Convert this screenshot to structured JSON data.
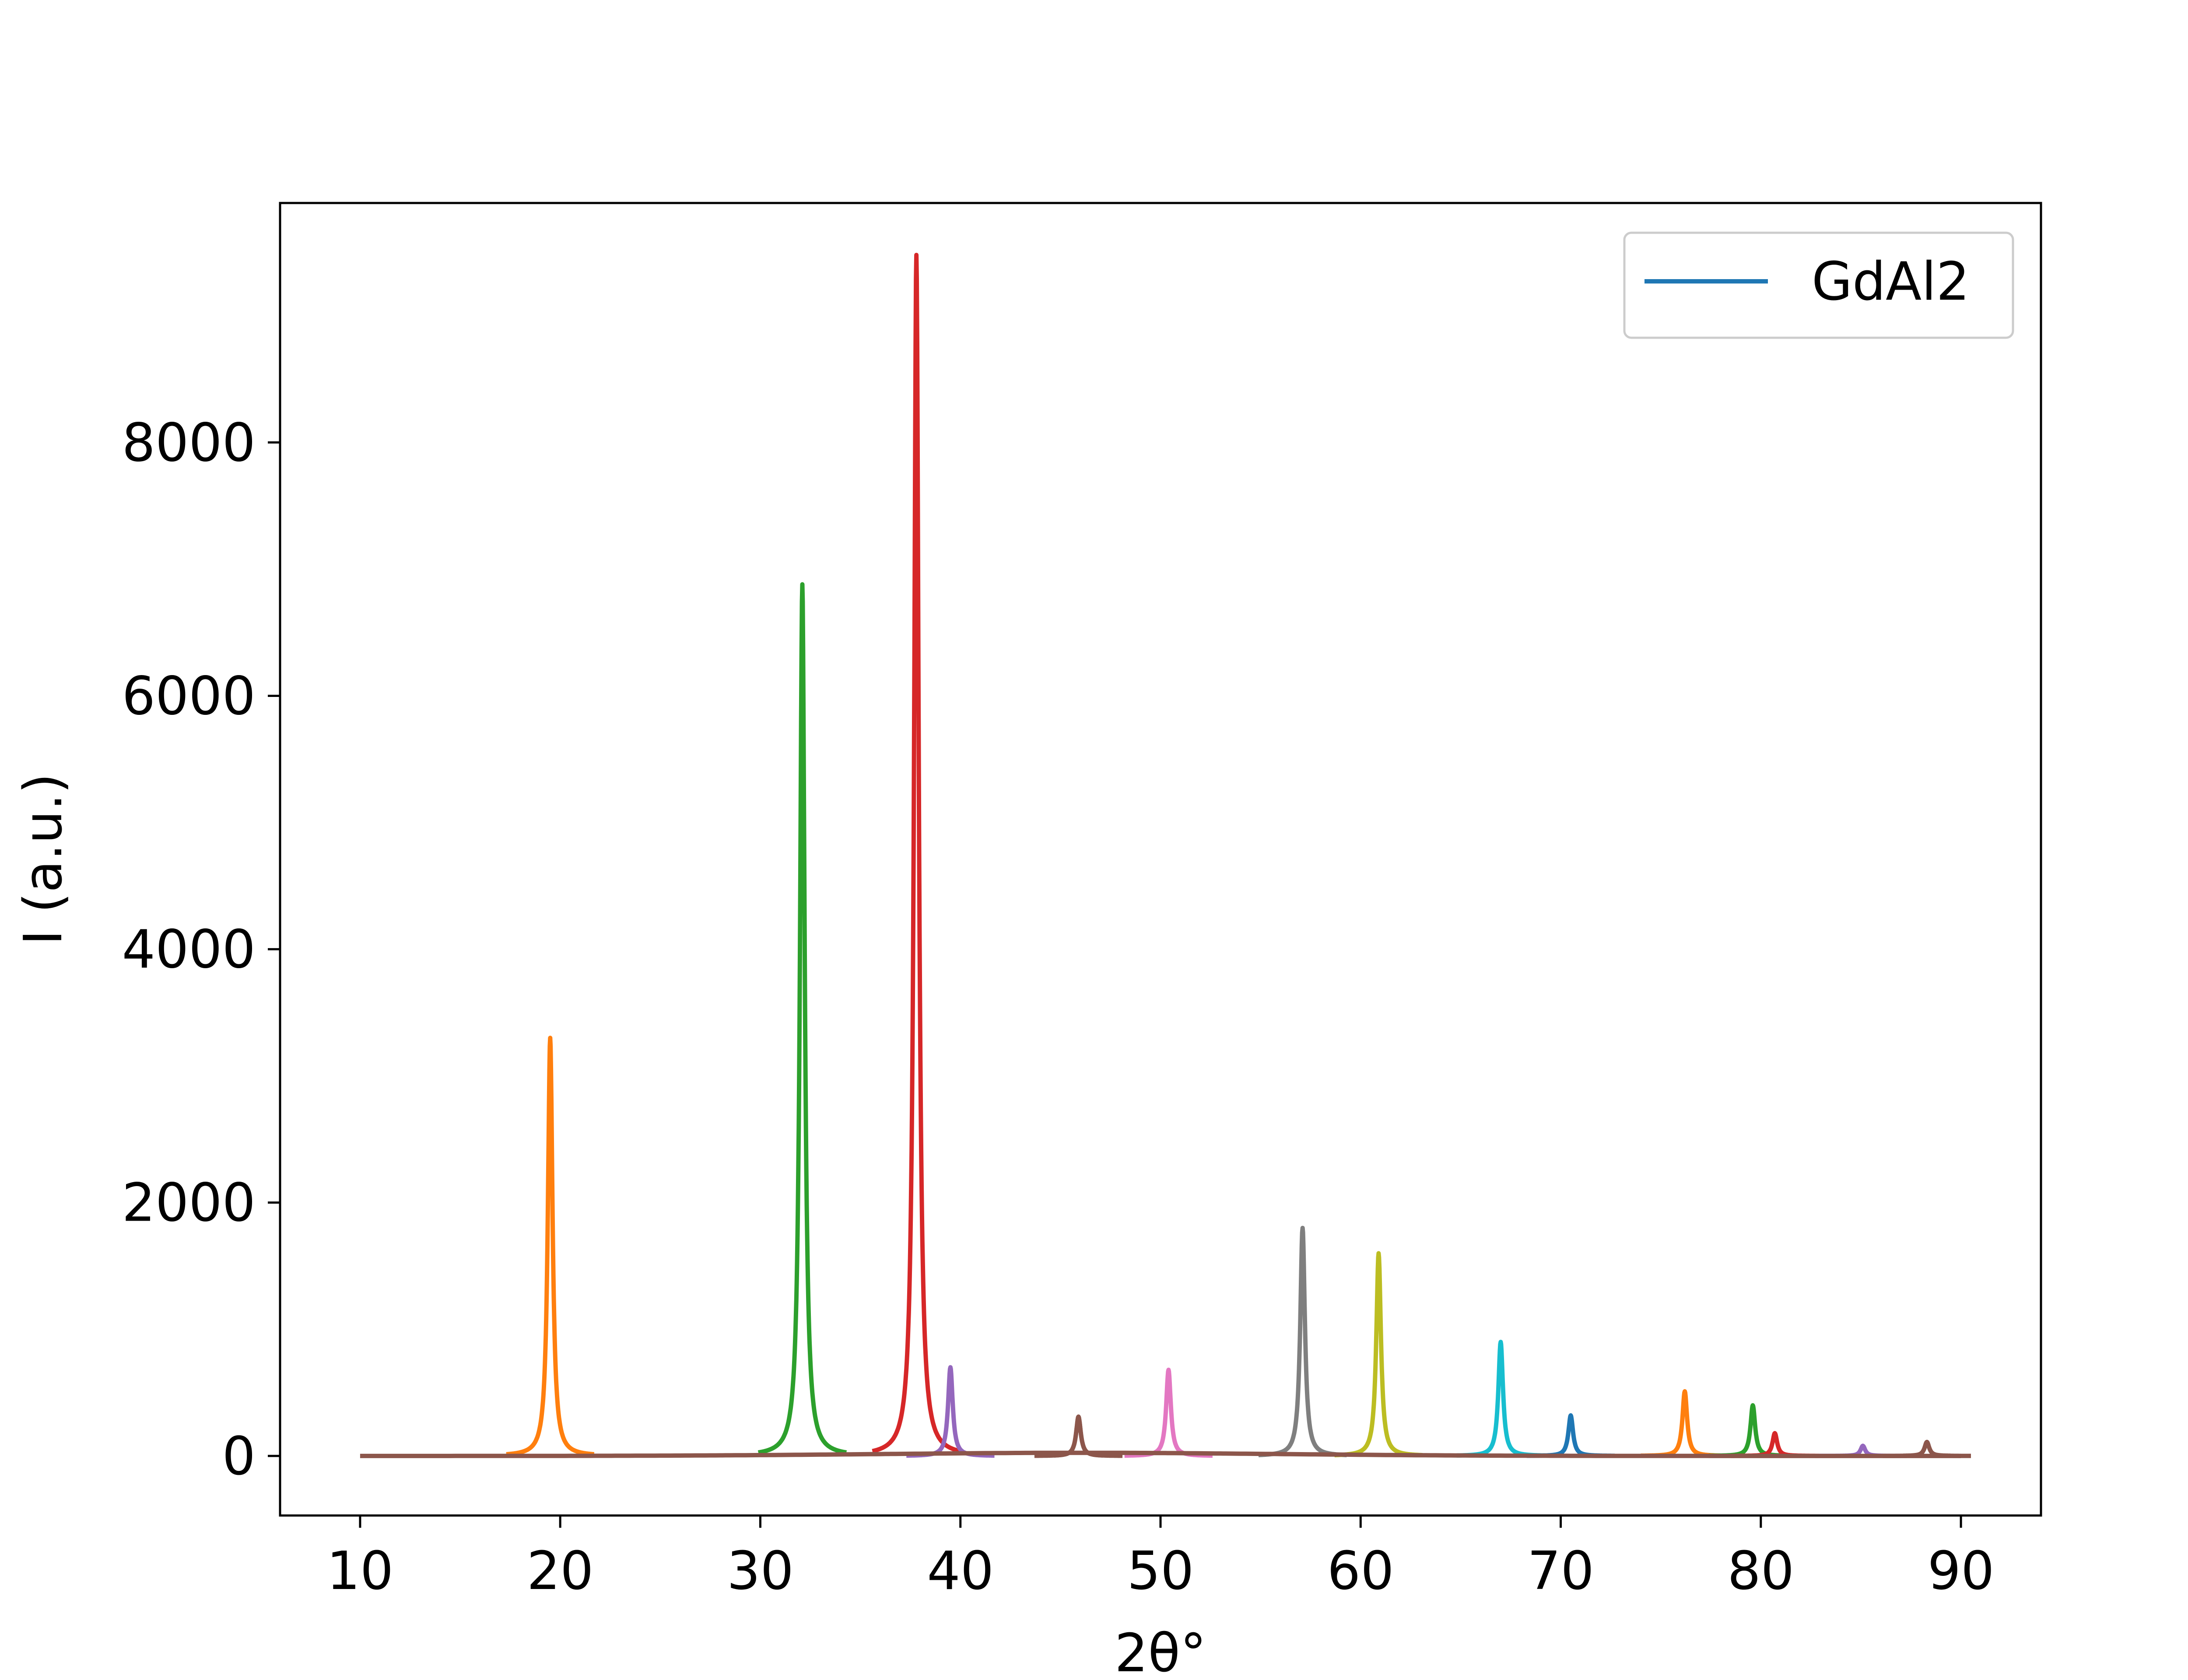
{
  "chart_data": {
    "type": "line",
    "xlabel": "2θ°",
    "ylabel": "I (a.u.)",
    "xlim": [
      6,
      94
    ],
    "ylim": [
      -470,
      9890
    ],
    "x_ticks": [
      10,
      20,
      30,
      40,
      50,
      60,
      70,
      80,
      90
    ],
    "y_ticks": [
      0,
      2000,
      4000,
      6000,
      8000
    ],
    "grid": false,
    "legend": {
      "position": "top-right",
      "entries": [
        {
          "label": "GdAl2",
          "color": "#1f77b4"
        }
      ]
    },
    "baseline": {
      "x_start": 10,
      "x_end": 90,
      "y": 0,
      "color": "#8c564b"
    },
    "broad_hump": {
      "center": 46,
      "amplitude": 25,
      "width": 14,
      "color": "#8c564b"
    },
    "peaks": [
      {
        "x": 19.5,
        "y": 3300,
        "color": "#ff7f0e"
      },
      {
        "x": 32.1,
        "y": 6880,
        "color": "#2ca02c"
      },
      {
        "x": 37.8,
        "y": 9480,
        "color": "#d62728"
      },
      {
        "x": 39.5,
        "y": 700,
        "color": "#9467bd"
      },
      {
        "x": 45.9,
        "y": 310,
        "color": "#8c564b"
      },
      {
        "x": 50.4,
        "y": 680,
        "color": "#e377c2"
      },
      {
        "x": 57.1,
        "y": 1800,
        "color": "#7f7f7f"
      },
      {
        "x": 60.9,
        "y": 1600,
        "color": "#bcbd22"
      },
      {
        "x": 67.0,
        "y": 900,
        "color": "#17becf"
      },
      {
        "x": 70.5,
        "y": 320,
        "color": "#1f77b4"
      },
      {
        "x": 76.2,
        "y": 510,
        "color": "#ff7f0e"
      },
      {
        "x": 79.6,
        "y": 400,
        "color": "#2ca02c"
      },
      {
        "x": 80.7,
        "y": 180,
        "color": "#d62728"
      },
      {
        "x": 85.1,
        "y": 80,
        "color": "#9467bd"
      },
      {
        "x": 88.3,
        "y": 110,
        "color": "#8c564b"
      }
    ]
  }
}
